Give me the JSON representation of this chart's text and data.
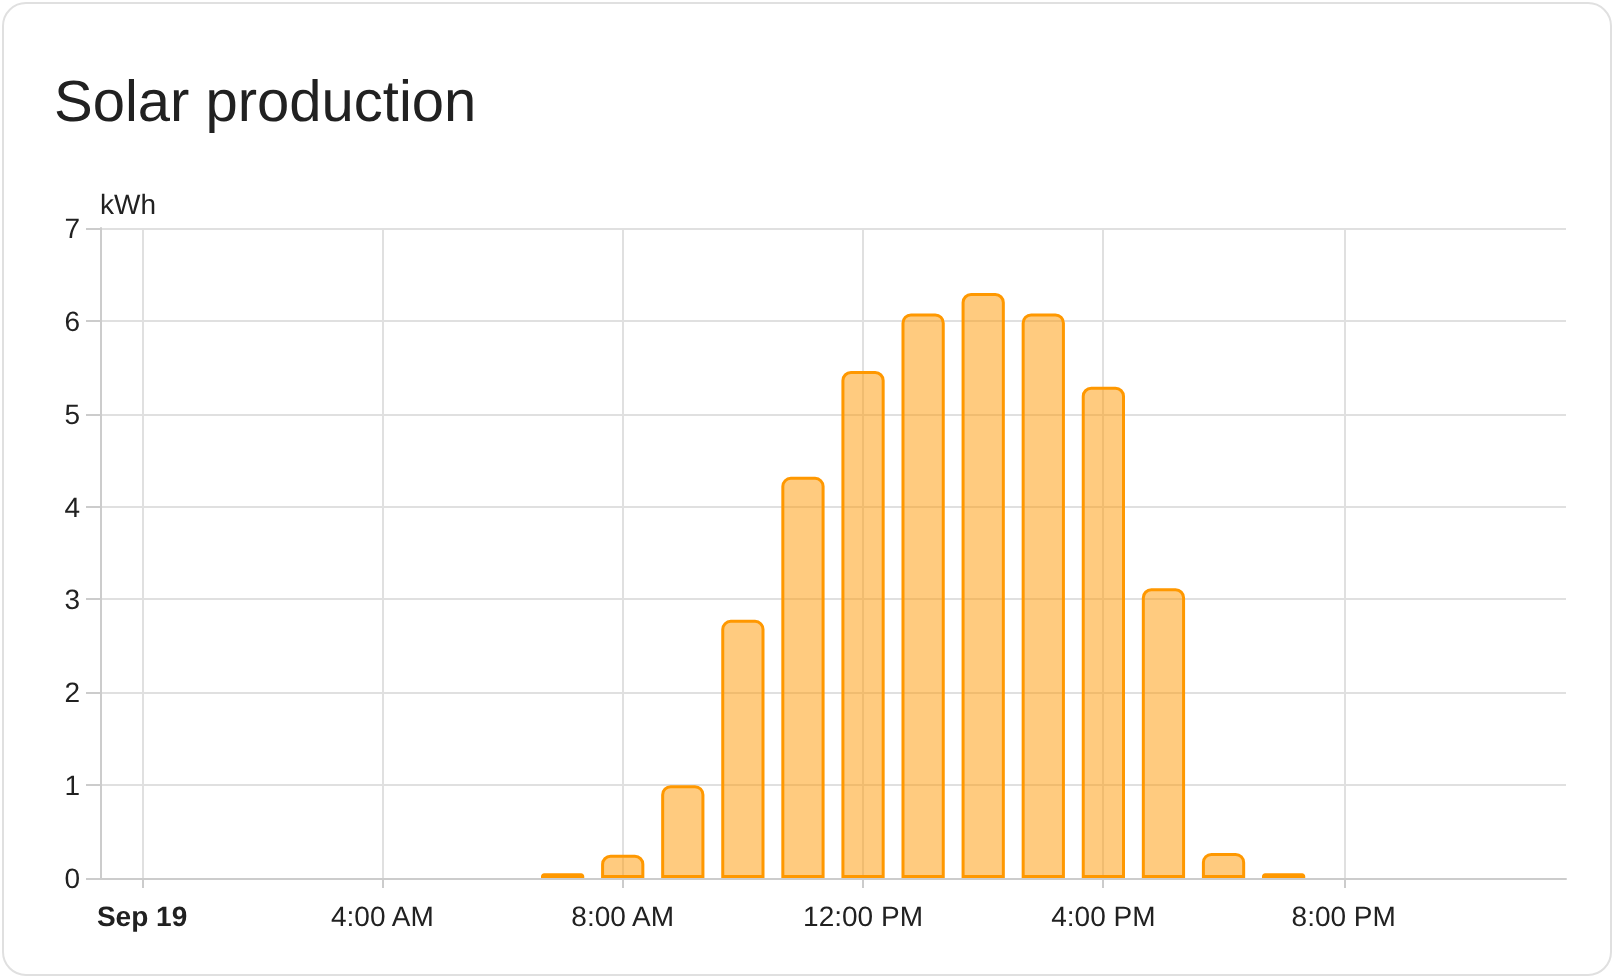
{
  "chart_data": {
    "type": "bar",
    "title": "Solar production",
    "ylabel": "kWh",
    "x": [
      7,
      8,
      9,
      10,
      11,
      12,
      13,
      14,
      15,
      16,
      17,
      18,
      19
    ],
    "values": [
      0.05,
      0.25,
      1.0,
      2.78,
      4.32,
      5.46,
      6.08,
      6.3,
      6.08,
      5.29,
      3.12,
      0.27,
      0.05
    ],
    "color": "#ff9800",
    "xlim": [
      -0.7,
      23.7
    ],
    "xticks": [
      {
        "value": 0,
        "label": "Sep 19"
      },
      {
        "value": 4,
        "label": "4:00 AM"
      },
      {
        "value": 8,
        "label": "8:00 AM"
      },
      {
        "value": 12,
        "label": "12:00 PM"
      },
      {
        "value": 16,
        "label": "4:00 PM"
      },
      {
        "value": 20,
        "label": "8:00 PM"
      }
    ],
    "ylim": [
      0,
      7
    ],
    "yticks": [
      0,
      1,
      2,
      3,
      4,
      5,
      6,
      7
    ],
    "grid": true
  }
}
